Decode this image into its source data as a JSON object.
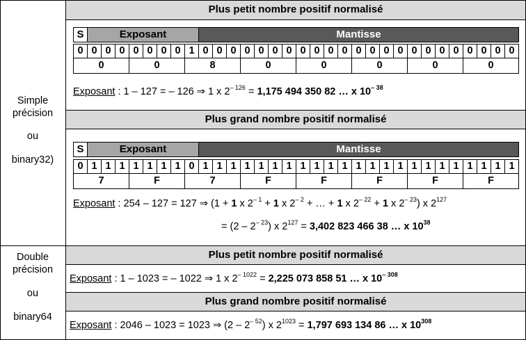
{
  "left_labels": {
    "simple": [
      "Simple",
      "précision",
      "ou",
      "binary32)"
    ],
    "double": [
      "Double",
      "précision",
      "ou",
      "binary64"
    ]
  },
  "headers": {
    "simple_min": "Plus petit nombre positif normalisé",
    "simple_max": "Plus grand nombre positif normalisé",
    "double_min": "Plus petit nombre positif normalisé",
    "double_max": "Plus grand nombre positif normalisé"
  },
  "field_labels": {
    "sign": "S",
    "exponent": "Exposant",
    "mantissa": "Mantisse"
  },
  "colors": {
    "header_bg": "#d9d9d9",
    "exponent_bg": "#a6a6a6",
    "mantissa_bg": "#595959"
  },
  "simple_min": {
    "bits": [
      "0",
      "0",
      "0",
      "0",
      "0",
      "0",
      "0",
      "0",
      "1",
      "0",
      "0",
      "0",
      "0",
      "0",
      "0",
      "0",
      "0",
      "0",
      "0",
      "0",
      "0",
      "0",
      "0",
      "0",
      "0",
      "0",
      "0",
      "0",
      "0",
      "0",
      "0",
      "0"
    ],
    "hex": [
      "0",
      "0",
      "8",
      "0",
      "0",
      "0",
      "0",
      "0"
    ],
    "formula": {
      "label": "Exposant",
      "p1": " : 1 – 127 = – 126 ⇒ 1 x 2",
      "s1": "– 126",
      "p2": " = ",
      "bold": "1,175 494 350 82 … x 10",
      "s2": "– 38"
    }
  },
  "simple_max": {
    "bits": [
      "0",
      "1",
      "1",
      "1",
      "1",
      "1",
      "1",
      "1",
      "0",
      "1",
      "1",
      "1",
      "1",
      "1",
      "1",
      "1",
      "1",
      "1",
      "1",
      "1",
      "1",
      "1",
      "1",
      "1",
      "1",
      "1",
      "1",
      "1",
      "1",
      "1",
      "1",
      "1"
    ],
    "hex": [
      "7",
      "F",
      "7",
      "F",
      "F",
      "F",
      "F",
      "F"
    ],
    "formula1": {
      "label": "Exposant",
      "p1": " : 254 – 127 = 127  ⇒ (1 + ",
      "b1": "1",
      "p2": " x 2",
      "s1": "– 1",
      "p3": " + ",
      "b2": "1",
      "p4": " x 2",
      "s2": "– 2",
      "p5": " + … + ",
      "b3": "1",
      "p6": " x 2",
      "s3": "– 22",
      "p7": " + ",
      "b4": "1",
      "p8": " x 2",
      "s4": "– 23",
      "p9": ") x 2",
      "s5": "127"
    },
    "formula2": {
      "p1": "=  (2 – 2",
      "s1": "– 23",
      "p2": ") x 2",
      "s2": "127",
      "p3": " = ",
      "bold": "3,402 823 466 38 … x 10",
      "s3": "38"
    }
  },
  "double_min": {
    "label": "Exposant",
    "p1": " : 1 – 1023 = – 1022 ⇒ 1 x 2",
    "s1": "– 1022",
    "p2": " = ",
    "bold": "2,225 073 858 51 … x 10",
    "s2": "– 308"
  },
  "double_max": {
    "label": "Exposant",
    "p1": " : 2046 – 1023 = 1023 ⇒ (2 – 2",
    "s1": "– 52",
    "p2": ") x 2",
    "s2": "1023",
    "p3": " = ",
    "bold": "1,797 693 134 86 … x 10",
    "s3": "308"
  }
}
